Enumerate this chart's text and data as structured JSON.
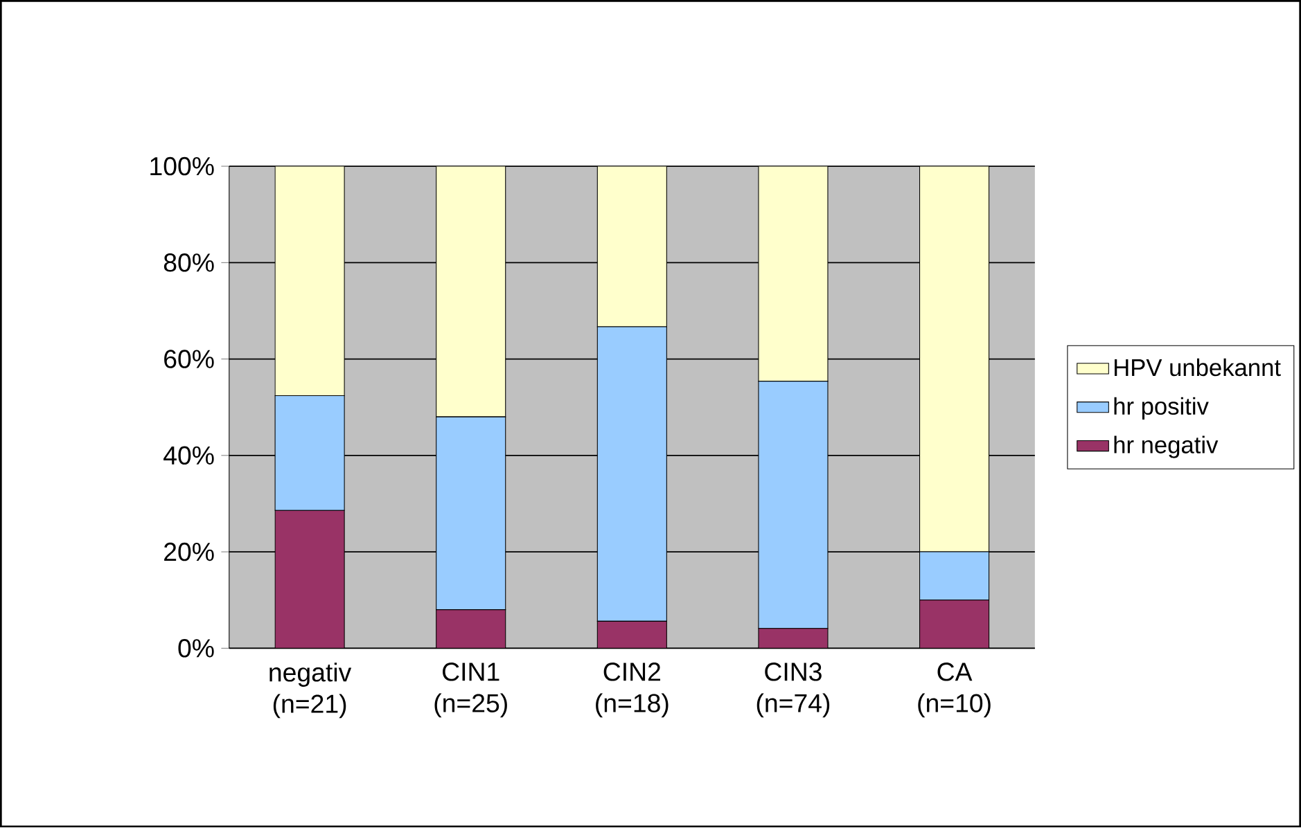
{
  "chart_data": {
    "type": "bar",
    "stacked": true,
    "categories": [
      "negativ (n=21)",
      "CIN1 (n=25)",
      "CIN2 (n=18)",
      "CIN3 (n=74)",
      "CA (n=10)"
    ],
    "series": [
      {
        "name": "hr negativ",
        "color": "#993366",
        "values": [
          28.6,
          8,
          5.6,
          4.1,
          10
        ]
      },
      {
        "name": "hr positiv",
        "color": "#99ccff",
        "values": [
          23.8,
          40,
          61.1,
          51.3,
          10
        ]
      },
      {
        "name": "HPV unbekannt",
        "color": "#ffffcc",
        "values": [
          47.6,
          52,
          33.3,
          44.6,
          80
        ]
      }
    ],
    "ylim": [
      0,
      100
    ],
    "yticks": [
      {
        "value": 0,
        "label": "0%"
      },
      {
        "value": 20,
        "label": "20%"
      },
      {
        "value": 40,
        "label": "40%"
      },
      {
        "value": 60,
        "label": "60%"
      },
      {
        "value": 80,
        "label": "80%"
      },
      {
        "value": 100,
        "label": "100%"
      }
    ],
    "grid": "y",
    "legend": "right"
  }
}
